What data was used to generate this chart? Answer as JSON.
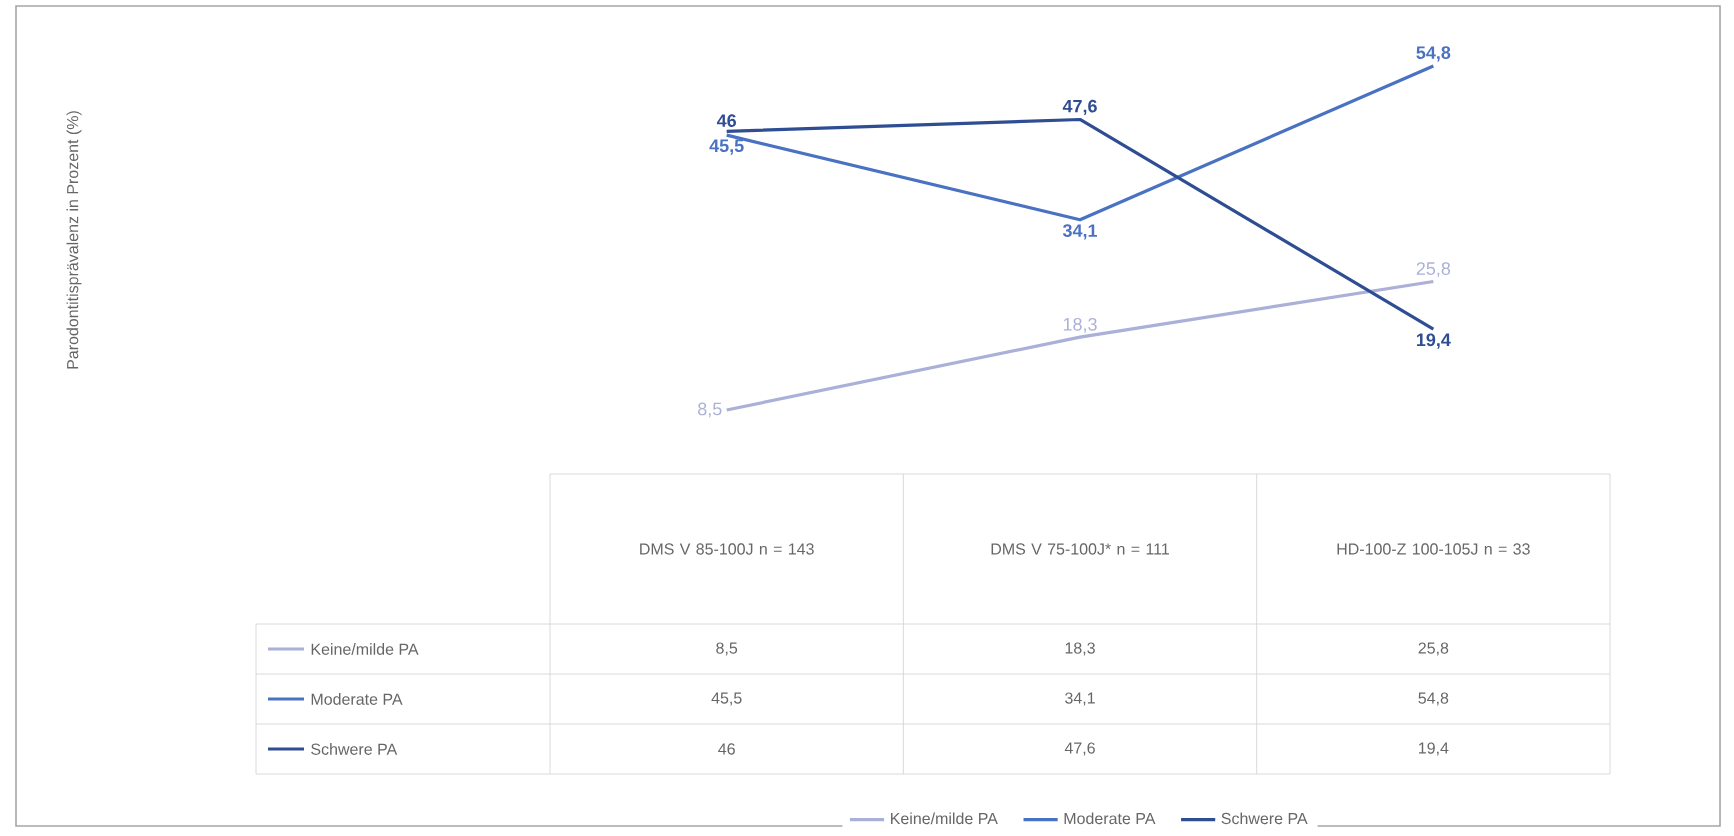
{
  "chart_data": {
    "type": "line",
    "annotations": [
      "Parodontitisprävalenz in Prozent (%)"
    ],
    "categories": [
      "DMS V 85-100J n = 143",
      "DMS V 75-100J* n = 111",
      "HD-100-Z 100-105J n = 33"
    ],
    "series": [
      {
        "name": "Keine/milde PA",
        "color": "#aab0d8",
        "values": [
          8.5,
          18.3,
          25.8
        ],
        "value_labels": [
          "8,5",
          "18,3",
          "25,8"
        ]
      },
      {
        "name": "Moderate PA",
        "color": "#4a72c2",
        "values": [
          45.5,
          34.1,
          54.8
        ],
        "value_labels": [
          "45,5",
          "34,1",
          "54,8"
        ]
      },
      {
        "name": "Schwere PA",
        "color": "#2e4d93",
        "values": [
          46,
          47.6,
          19.4
        ],
        "value_labels": [
          "46",
          "47,6",
          "19,4"
        ]
      }
    ],
    "legend": "bottom"
  }
}
